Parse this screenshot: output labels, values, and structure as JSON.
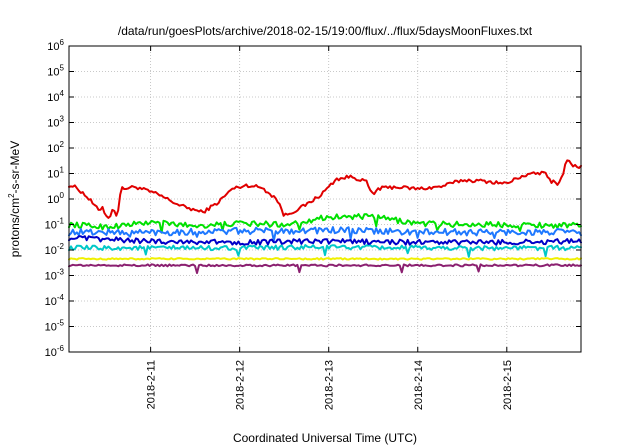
{
  "chart_data": {
    "type": "line",
    "title": "/data/run/goesPlots/archive/2018-02-15/19:00/flux/../flux/5daysMoonFluxes.txt",
    "xlabel": "Coordinated Universal Time (UTC)",
    "ylabel": {
      "pre": "protons/cm",
      "sup": "2",
      "post": "-s-sr-MeV"
    },
    "yscale": "log",
    "ylim_exponents": [
      -6,
      6
    ],
    "y_tick_labels": [
      {
        "base": "10",
        "exp": "6"
      },
      {
        "base": "10",
        "exp": "5"
      },
      {
        "base": "10",
        "exp": "4"
      },
      {
        "base": "10",
        "exp": "3"
      },
      {
        "base": "10",
        "exp": "2"
      },
      {
        "base": "10",
        "exp": "1"
      },
      {
        "base": "10",
        "exp": "0"
      },
      {
        "base": "10",
        "exp": "-1"
      },
      {
        "base": "10",
        "exp": "-2"
      },
      {
        "base": "10",
        "exp": "-3"
      },
      {
        "base": "10",
        "exp": "-4"
      },
      {
        "base": "10",
        "exp": "-5"
      },
      {
        "base": "10",
        "exp": "-6"
      }
    ],
    "xlim": [
      "2018-02-10 02:00",
      "2018-02-15 20:00"
    ],
    "x_ticks": [
      {
        "value": "2018-02-11 00:00",
        "label": "2018-2-11"
      },
      {
        "value": "2018-02-12 00:00",
        "label": "2018-2-12"
      },
      {
        "value": "2018-02-13 00:00",
        "label": "2018-2-13"
      },
      {
        "value": "2018-02-14 00:00",
        "label": "2018-2-14"
      },
      {
        "value": "2018-02-15 00:00",
        "label": "2018-2-15"
      }
    ],
    "grid": true,
    "series": [
      {
        "color": "#e00000",
        "noise": 0.07,
        "spikes": [],
        "points": [
          [
            "2018-02-10 02:00",
            3.5
          ],
          [
            "2018-02-10 04:00",
            2.8
          ],
          [
            "2018-02-10 06:00",
            1.6
          ],
          [
            "2018-02-10 08:00",
            0.8
          ],
          [
            "2018-02-10 10:00",
            0.35
          ],
          [
            "2018-02-10 11:00",
            0.5
          ],
          [
            "2018-02-10 12:00",
            0.22
          ],
          [
            "2018-02-10 13:00",
            0.19
          ],
          [
            "2018-02-10 14:00",
            0.45
          ],
          [
            "2018-02-10 15:00",
            0.2
          ],
          [
            "2018-02-10 16:00",
            2.5
          ],
          [
            "2018-02-10 20:00",
            3.0
          ],
          [
            "2018-02-11 02:00",
            1.5
          ],
          [
            "2018-02-11 08:00",
            0.55
          ],
          [
            "2018-02-11 14:00",
            0.3
          ],
          [
            "2018-02-11 18:00",
            0.7
          ],
          [
            "2018-02-11 22:00",
            2.5
          ],
          [
            "2018-02-12 02:00",
            3.5
          ],
          [
            "2018-02-12 06:00",
            2.8
          ],
          [
            "2018-02-12 10:00",
            1.0
          ],
          [
            "2018-02-12 11:00",
            0.5
          ],
          [
            "2018-02-12 12:00",
            0.22
          ],
          [
            "2018-02-12 14:00",
            0.3
          ],
          [
            "2018-02-12 18:00",
            0.6
          ],
          [
            "2018-02-12 22:00",
            1.5
          ],
          [
            "2018-02-13 00:00",
            3.0
          ],
          [
            "2018-02-13 02:00",
            6.0
          ],
          [
            "2018-02-13 06:00",
            7.5
          ],
          [
            "2018-02-13 10:00",
            5.0
          ],
          [
            "2018-02-13 12:00",
            1.3
          ],
          [
            "2018-02-13 13:00",
            2.5
          ],
          [
            "2018-02-13 18:00",
            3.0
          ],
          [
            "2018-02-14 00:00",
            2.5
          ],
          [
            "2018-02-14 06:00",
            3.0
          ],
          [
            "2018-02-14 12:00",
            5.5
          ],
          [
            "2018-02-14 18:00",
            5.0
          ],
          [
            "2018-02-15 00:00",
            4.0
          ],
          [
            "2018-02-15 04:00",
            8.0
          ],
          [
            "2018-02-15 08:00",
            10.0
          ],
          [
            "2018-02-15 10:00",
            11.0
          ],
          [
            "2018-02-15 12:00",
            5.0
          ],
          [
            "2018-02-15 14:00",
            4.0
          ],
          [
            "2018-02-15 15:00",
            8.0
          ],
          [
            "2018-02-15 16:00",
            35.0
          ],
          [
            "2018-02-15 18:00",
            20.0
          ],
          [
            "2018-02-15 20:00",
            18.0
          ]
        ]
      },
      {
        "color": "#00e000",
        "noise": 0.11,
        "spikes": [
          0.18,
          0.3,
          0.45,
          0.6,
          0.72,
          0.88
        ],
        "points": [
          [
            "2018-02-10 02:00",
            0.1
          ],
          [
            "2018-02-10 12:00",
            0.08
          ],
          [
            "2018-02-11 00:00",
            0.12
          ],
          [
            "2018-02-11 12:00",
            0.09
          ],
          [
            "2018-02-12 00:00",
            0.11
          ],
          [
            "2018-02-12 12:00",
            0.1
          ],
          [
            "2018-02-13 00:00",
            0.2
          ],
          [
            "2018-02-13 12:00",
            0.2
          ],
          [
            "2018-02-14 00:00",
            0.11
          ],
          [
            "2018-02-14 12:00",
            0.1
          ],
          [
            "2018-02-15 00:00",
            0.1
          ],
          [
            "2018-02-15 20:00",
            0.09
          ]
        ]
      },
      {
        "color": "#1e78ff",
        "noise": 0.13,
        "spikes": [
          0.12,
          0.25,
          0.4,
          0.55,
          0.68,
          0.83
        ],
        "points": [
          [
            "2018-02-10 02:00",
            0.05
          ],
          [
            "2018-02-11 00:00",
            0.05
          ],
          [
            "2018-02-12 00:00",
            0.055
          ],
          [
            "2018-02-13 00:00",
            0.06
          ],
          [
            "2018-02-14 00:00",
            0.05
          ],
          [
            "2018-02-15 00:00",
            0.05
          ],
          [
            "2018-02-15 20:00",
            0.05
          ]
        ]
      },
      {
        "color": "#00c8c8",
        "noise": 0.09,
        "spikes": [
          0.15,
          0.33,
          0.5,
          0.66,
          0.78,
          0.93
        ],
        "points": [
          [
            "2018-02-10 02:00",
            0.012
          ],
          [
            "2018-02-11 00:00",
            0.012
          ],
          [
            "2018-02-12 00:00",
            0.012
          ],
          [
            "2018-02-13 00:00",
            0.013
          ],
          [
            "2018-02-14 00:00",
            0.012
          ],
          [
            "2018-02-15 00:00",
            0.012
          ],
          [
            "2018-02-15 20:00",
            0.012
          ]
        ]
      },
      {
        "color": "#0000c8",
        "noise": 0.1,
        "spikes": [],
        "points": [
          [
            "2018-02-10 02:00",
            0.03
          ],
          [
            "2018-02-11 00:00",
            0.022
          ],
          [
            "2018-02-12 00:00",
            0.02
          ],
          [
            "2018-02-13 00:00",
            0.022
          ],
          [
            "2018-02-14 00:00",
            0.02
          ],
          [
            "2018-02-15 00:00",
            0.02
          ],
          [
            "2018-02-15 20:00",
            0.022
          ]
        ]
      },
      {
        "color": "#f0f000",
        "noise": 0.03,
        "spikes": [],
        "points": [
          [
            "2018-02-10 02:00",
            0.0045
          ],
          [
            "2018-02-12 00:00",
            0.0045
          ],
          [
            "2018-02-14 00:00",
            0.0045
          ],
          [
            "2018-02-15 20:00",
            0.0045
          ]
        ]
      },
      {
        "color": "#8b2070",
        "noise": 0.04,
        "spikes": [
          0.25,
          0.45,
          0.65,
          0.8
        ],
        "points": [
          [
            "2018-02-10 02:00",
            0.0025
          ],
          [
            "2018-02-12 00:00",
            0.0025
          ],
          [
            "2018-02-14 00:00",
            0.0025
          ],
          [
            "2018-02-15 20:00",
            0.0025
          ]
        ]
      }
    ]
  }
}
